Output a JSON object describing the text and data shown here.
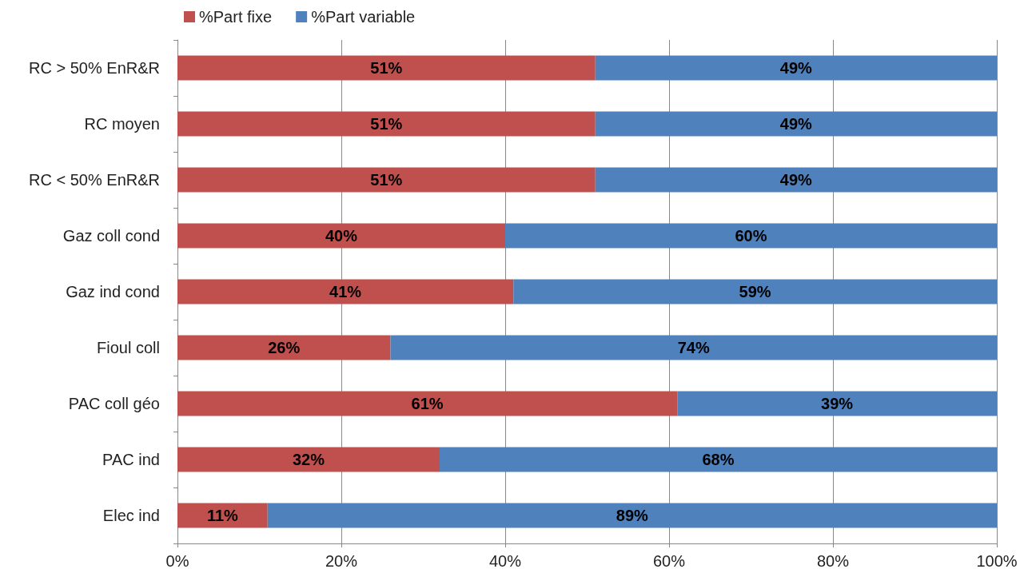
{
  "chart_data": {
    "type": "bar",
    "orientation": "horizontal",
    "stacked": true,
    "categories": [
      "RC > 50% EnR&R",
      "RC moyen",
      "RC < 50% EnR&R",
      "Gaz coll cond",
      "Gaz ind cond",
      "Fioul coll",
      "PAC coll géo",
      "PAC ind",
      "Elec ind"
    ],
    "series": [
      {
        "name": "%Part fixe",
        "color": "#c0504d",
        "values": [
          51,
          51,
          51,
          40,
          41,
          26,
          61,
          32,
          11
        ],
        "value_labels": [
          "51%",
          "51%",
          "51%",
          "40%",
          "41%",
          "26%",
          "61%",
          "32%",
          "11%"
        ]
      },
      {
        "name": "%Part variable",
        "color": "#4f81bd",
        "values": [
          49,
          49,
          49,
          60,
          59,
          74,
          39,
          68,
          89
        ],
        "value_labels": [
          "49%",
          "49%",
          "49%",
          "60%",
          "59%",
          "74%",
          "39%",
          "68%",
          "89%"
        ]
      }
    ],
    "xlim": [
      0,
      100
    ],
    "xticks": [
      {
        "value": 0,
        "label": "0%"
      },
      {
        "value": 20,
        "label": "20%"
      },
      {
        "value": 40,
        "label": "40%"
      },
      {
        "value": 60,
        "label": "60%"
      },
      {
        "value": 80,
        "label": "80%"
      },
      {
        "value": 100,
        "label": "100%"
      }
    ],
    "grid": "x",
    "legend": "top left"
  }
}
